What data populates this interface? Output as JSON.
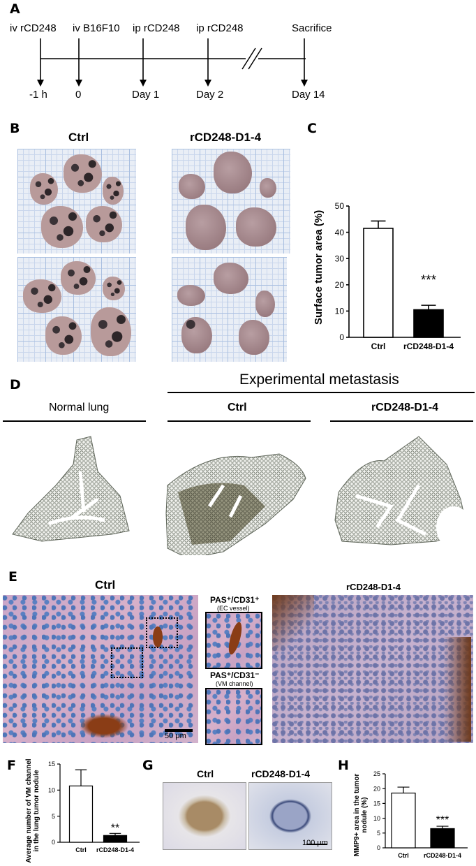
{
  "panels": {
    "A": "A",
    "B": "B",
    "C": "C",
    "D": "D",
    "E": "E",
    "F": "F",
    "G": "G",
    "H": "H"
  },
  "timeline": {
    "events": [
      {
        "top": "iv rCD248",
        "bottom": "-1 h"
      },
      {
        "top": "iv B16F10",
        "bottom": "0"
      },
      {
        "top": "ip rCD248",
        "bottom": "Day 1"
      },
      {
        "top": "ip rCD248",
        "bottom": "Day 2"
      },
      {
        "top": "Sacrifice",
        "bottom": "Day 14"
      }
    ]
  },
  "panelB": {
    "ctrl_label": "Ctrl",
    "treat_label": "rCD248-D1-4"
  },
  "panelD": {
    "header": "Experimental metastasis",
    "normal": "Normal lung",
    "ctrl": "Ctrl",
    "treat": "rCD248-D1-4"
  },
  "panelE": {
    "ctrl": "Ctrl",
    "treat": "rCD248-D1-4",
    "scale": "50 μm",
    "inset1_title": "PAS⁺/CD31⁺",
    "inset1_sub": "(EC vessel)",
    "inset2_title": "PAS⁺/CD31⁻",
    "inset2_sub": "(VM channel)"
  },
  "panelG": {
    "ctrl": "Ctrl",
    "treat": "rCD248-D1-4",
    "scale": "100 μm"
  },
  "colors": {
    "filled_bar": "#000000",
    "open_bar": "#ffffff"
  },
  "chart_data": [
    {
      "id": "C",
      "type": "bar",
      "categories": [
        "Ctrl",
        "rCD248-D1-4"
      ],
      "values": [
        41.5,
        10.5
      ],
      "errors": [
        2.8,
        1.7
      ],
      "fills": [
        "open",
        "filled"
      ],
      "ylabel": "Surface tumor area (%)",
      "ylim": [
        0,
        50
      ],
      "yticks": [
        0,
        10,
        20,
        30,
        40,
        50
      ],
      "significance": "***"
    },
    {
      "id": "F",
      "type": "bar",
      "categories": [
        "Ctrl",
        "rCD248-D1-4"
      ],
      "values": [
        10.8,
        1.3
      ],
      "errors": [
        3.1,
        0.4
      ],
      "fills": [
        "open",
        "filled"
      ],
      "ylabel": "Average number of VM channel in the lung tumor nodule",
      "ylim": [
        0,
        15
      ],
      "yticks": [
        0,
        5,
        10,
        15
      ],
      "significance": "**"
    },
    {
      "id": "H",
      "type": "bar",
      "categories": [
        "Ctrl",
        "rCD248-D1-4"
      ],
      "values": [
        18.5,
        6.5
      ],
      "errors": [
        2.0,
        0.8
      ],
      "fills": [
        "open",
        "filled"
      ],
      "ylabel": "MMP9+ area in the tumor nodule (%)",
      "ylim": [
        0,
        25
      ],
      "yticks": [
        0,
        5,
        10,
        15,
        20,
        25
      ],
      "significance": "***"
    }
  ]
}
